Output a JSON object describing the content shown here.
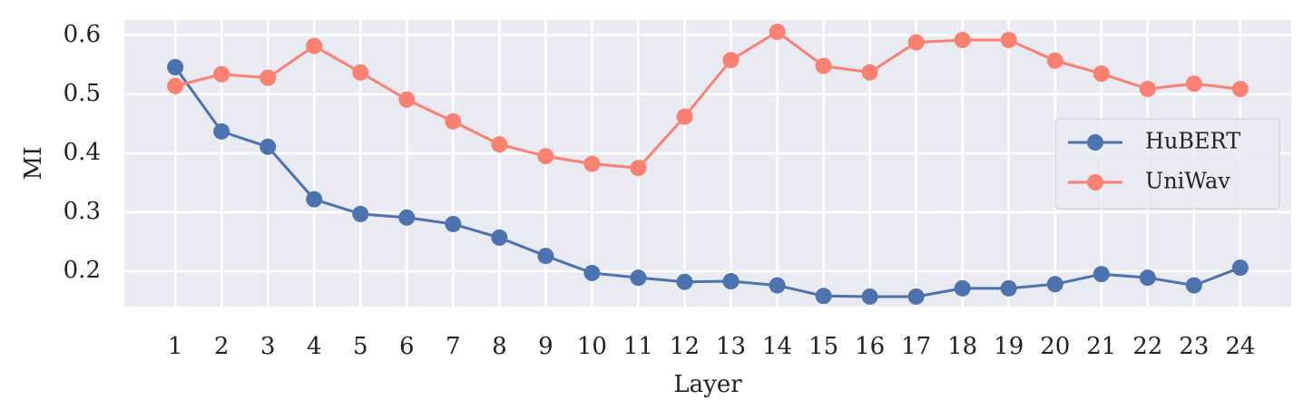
{
  "chart_data": {
    "type": "line",
    "x_label": "Layer",
    "y_label": "MI",
    "x": [
      1,
      2,
      3,
      4,
      5,
      6,
      7,
      8,
      9,
      10,
      11,
      12,
      13,
      14,
      15,
      16,
      17,
      18,
      19,
      20,
      21,
      22,
      23,
      24
    ],
    "series": [
      {
        "name": "HuBERT",
        "color": "#4c72b0",
        "values": [
          0.546,
          0.437,
          0.411,
          0.322,
          0.297,
          0.291,
          0.28,
          0.257,
          0.226,
          0.197,
          0.189,
          0.182,
          0.183,
          0.176,
          0.158,
          0.157,
          0.157,
          0.171,
          0.171,
          0.178,
          0.195,
          0.189,
          0.176,
          0.206
        ]
      },
      {
        "name": "UniWav",
        "color": "#fa8072",
        "values": [
          0.514,
          0.534,
          0.528,
          0.582,
          0.537,
          0.491,
          0.454,
          0.415,
          0.395,
          0.382,
          0.375,
          0.462,
          0.558,
          0.606,
          0.548,
          0.537,
          0.588,
          0.592,
          0.592,
          0.557,
          0.535,
          0.509,
          0.518,
          0.509
        ]
      }
    ],
    "xlim": [
      -0.1,
      25.1
    ],
    "xticks": [
      1,
      2,
      3,
      4,
      5,
      6,
      7,
      8,
      9,
      10,
      11,
      12,
      13,
      14,
      15,
      16,
      17,
      18,
      19,
      20,
      21,
      22,
      23,
      24
    ],
    "ylim": [
      0.14,
      0.626
    ],
    "yticks": [
      0.2,
      0.3,
      0.4,
      0.5,
      0.6
    ],
    "grid": true,
    "legend": "center right"
  }
}
